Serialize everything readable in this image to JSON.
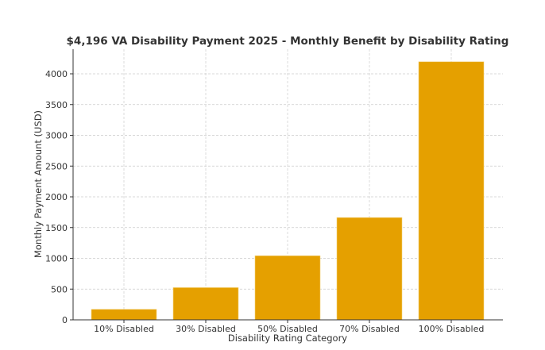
{
  "chart_data": {
    "type": "bar",
    "title": "$4,196 VA Disability Payment 2025 - Monthly Benefit by Disability Rating",
    "xlabel": "Disability Rating Category",
    "ylabel": "Monthly Payment Amount (USD)",
    "categories": [
      "10% Disabled",
      "30% Disabled",
      "50% Disabled",
      "70% Disabled",
      "100% Disabled"
    ],
    "values": [
      171,
      524,
      1042,
      1663,
      4196
    ],
    "ylim": [
      0,
      4400
    ],
    "yticks": [
      0,
      500,
      1000,
      1500,
      2000,
      2500,
      3000,
      3500,
      4000
    ],
    "grid": true,
    "bar_color": "#e5a000"
  }
}
